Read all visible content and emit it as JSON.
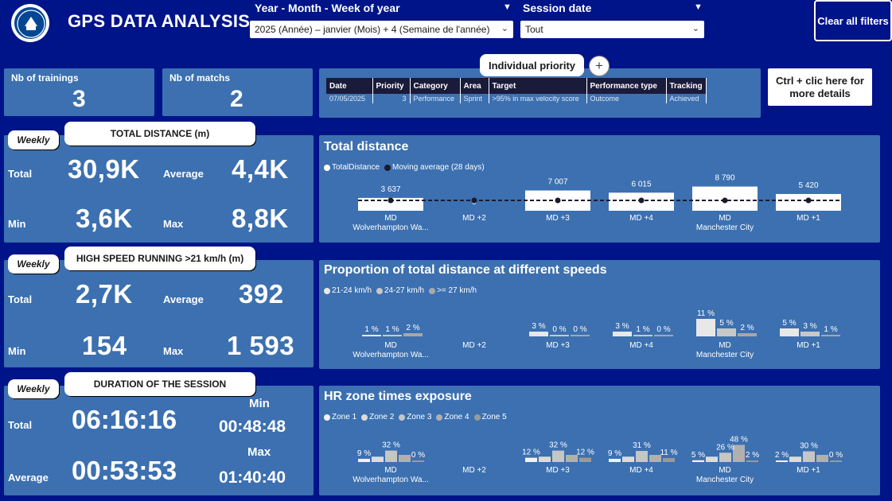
{
  "header": {
    "title": "GPS DATA ANALYSIS",
    "slicer1_label": "Year - Month - Week of year",
    "slicer1_value": "2025 (Année) – janvier (Mois) + 4 (Semaine de l'année)",
    "slicer2_label": "Session date",
    "slicer2_value": "Tout",
    "clear_filters": "Clear all filters"
  },
  "counts": {
    "trainings_label": "Nb of trainings",
    "trainings_value": "3",
    "matchs_label": "Nb of matchs",
    "matchs_value": "2"
  },
  "priority": {
    "button": "Individual priority",
    "plus": "+",
    "ctrl_hint": "Ctrl + clic here for more details",
    "columns": [
      "Date",
      "Priority",
      "Category",
      "Area",
      "Target",
      "Performance type",
      "Tracking"
    ],
    "rows": [
      [
        "07/05/2025",
        "3",
        "Performance",
        "Sprint",
        ">95% in max velocity score",
        "Outcome",
        "Achieved"
      ]
    ]
  },
  "distance_kpi": {
    "weekly": "Weekly",
    "title": "TOTAL DISTANCE (m)",
    "total_label": "Total",
    "total": "30,9K",
    "average_label": "Average",
    "average": "4,4K",
    "min_label": "Min",
    "min": "3,6K",
    "max_label": "Max",
    "max": "8,8K"
  },
  "hsr_kpi": {
    "weekly": "Weekly",
    "title": "HIGH SPEED RUNNING >21 km/h (m)",
    "total_label": "Total",
    "total": "2,7K",
    "average_label": "Average",
    "average": "392",
    "min_label": "Min",
    "min": "154",
    "max_label": "Max",
    "max": "1 593"
  },
  "duration_kpi": {
    "weekly": "Weekly",
    "title": "DURATION OF THE SESSION",
    "total_label": "Total",
    "total": "06:16:16",
    "average_label": "Average",
    "average": "00:53:53",
    "min_label": "Min",
    "min": "00:48:48",
    "max_label": "Max",
    "max": "01:40:40"
  },
  "chart_data": [
    {
      "type": "bar",
      "title": "Total distance",
      "legend": [
        "TotalDistance",
        "Moving average (28 days)"
      ],
      "categories": [
        [
          "MD",
          "Wolverhampton Wa..."
        ],
        [
          "MD +2",
          ""
        ],
        [
          "MD +3",
          ""
        ],
        [
          "MD +4",
          ""
        ],
        [
          "MD",
          "Manchester City"
        ],
        [
          "MD +1",
          ""
        ]
      ],
      "series": [
        {
          "name": "TotalDistance",
          "values": [
            3637,
            0,
            7007,
            6015,
            8790,
            5420
          ],
          "labels": [
            "3 637",
            "0",
            "7 007",
            "6 015",
            "8 790",
            "5 420"
          ]
        }
      ],
      "colors": {
        "bar": "#ffffff",
        "line": "#1a1a2e"
      }
    },
    {
      "type": "bar",
      "title": "Proportion of total distance at different speeds",
      "legend": [
        "21-24 km/h",
        "24-27 km/h",
        ">= 27 km/h"
      ],
      "categories": [
        [
          "MD",
          "Wolverhampton Wa..."
        ],
        [
          "MD +2",
          ""
        ],
        [
          "MD +3",
          ""
        ],
        [
          "MD +4",
          ""
        ],
        [
          "MD",
          "Manchester City"
        ],
        [
          "MD +1",
          ""
        ]
      ],
      "series": [
        {
          "name": "21-24 km/h",
          "values": [
            1,
            null,
            3,
            3,
            11,
            5
          ]
        },
        {
          "name": "24-27 km/h",
          "values": [
            1,
            null,
            0,
            1,
            5,
            3
          ]
        },
        {
          "name": ">= 27 km/h",
          "values": [
            2,
            null,
            0,
            0,
            2,
            1
          ]
        }
      ],
      "colors": [
        "#e8e8e8",
        "#c8c8c8",
        "#a8a8a8"
      ]
    },
    {
      "type": "bar",
      "title": "HR zone times exposure",
      "legend": [
        "Zone 1",
        "Zone 2",
        "Zone 3",
        "Zone 4",
        "Zone 5"
      ],
      "categories": [
        [
          "MD",
          "Wolverhampton Wa..."
        ],
        [
          "MD +2",
          ""
        ],
        [
          "MD +3",
          ""
        ],
        [
          "MD +4",
          ""
        ],
        [
          "MD",
          "Manchester City"
        ],
        [
          "MD +1",
          ""
        ]
      ],
      "series": [
        {
          "name": "Zone 1",
          "values": [
            9,
            null,
            12,
            9,
            5,
            2
          ]
        },
        {
          "name": "Zone 2",
          "values": [
            15,
            null,
            15,
            15,
            15,
            15
          ]
        },
        {
          "name": "Zone 3",
          "values": [
            32,
            null,
            32,
            31,
            26,
            30
          ]
        },
        {
          "name": "Zone 4",
          "values": [
            20,
            null,
            20,
            20,
            48,
            20
          ]
        },
        {
          "name": "Zone 5",
          "values": [
            0,
            null,
            12,
            11,
            2,
            0
          ]
        }
      ],
      "point_labels": [
        [
          "9 %",
          "32 %",
          "0 %"
        ],
        [],
        [
          "12 %",
          "32 %",
          "12 %"
        ],
        [
          "9 %",
          "31 %",
          "11 %"
        ],
        [
          "5 %",
          "26 %",
          "48 %",
          "2 %"
        ],
        [
          "2 %",
          "30 %",
          "0 %"
        ]
      ],
      "colors": [
        "#f2f2f2",
        "#dcdcdc",
        "#c6c6c6",
        "#b0b0b0",
        "#9a9a9a"
      ]
    }
  ]
}
